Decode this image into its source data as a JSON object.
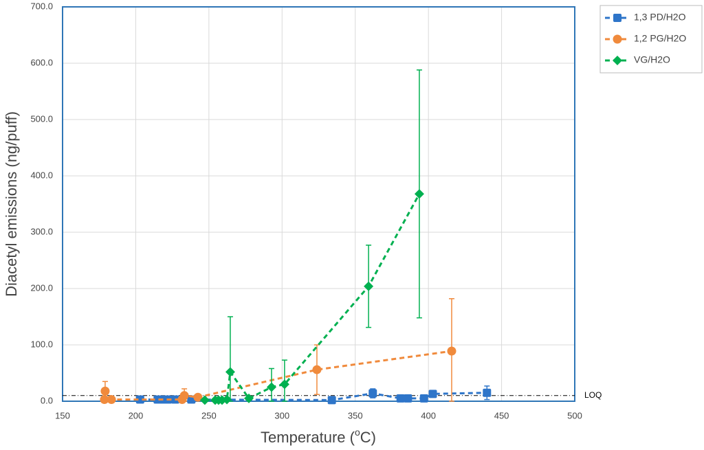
{
  "chart_data": {
    "type": "scatter",
    "xlabel": [
      "Temperature (",
      "o",
      "C)"
    ],
    "ylabel": "Diacetyl emissions (ng/puff)",
    "xlim": [
      150,
      500
    ],
    "xticks": [
      150,
      200,
      250,
      300,
      350,
      400,
      450,
      500
    ],
    "ylim": [
      0,
      700
    ],
    "yticks": [
      {
        "value": 0,
        "label": "0.0"
      },
      {
        "value": 100,
        "label": "100.0"
      },
      {
        "value": 200,
        "label": "200.0"
      },
      {
        "value": 300,
        "label": "300.0"
      },
      {
        "value": 400,
        "label": "400.0"
      },
      {
        "value": 500,
        "label": "500.0"
      },
      {
        "value": 600,
        "label": "600.0"
      },
      {
        "value": 700,
        "label": "700.0"
      }
    ],
    "grid": true,
    "legend": "right",
    "loq": {
      "label": "LOQ",
      "value": 10
    },
    "series": [
      {
        "name": "1,3 PD/H2O",
        "color": "#2e75c9",
        "marker": "square",
        "x": [
          203,
          215,
          218,
          222,
          227,
          238,
          334,
          362,
          381,
          386,
          397,
          403,
          440
        ],
        "values": [
          3,
          3,
          3,
          3,
          3,
          3,
          2,
          14,
          5,
          5,
          5,
          13,
          15
        ],
        "errors": [
          null,
          null,
          null,
          null,
          null,
          null,
          null,
          8,
          null,
          null,
          null,
          null,
          12
        ]
      },
      {
        "name": "1,2 PG/H2O",
        "color": "#f08a3c",
        "marker": "circle",
        "x": [
          178.6,
          179.1,
          183.4,
          231.7,
          233.2,
          242.5,
          323.8,
          415.9
        ],
        "values": [
          3,
          18,
          3,
          3,
          10,
          7,
          56,
          89
        ],
        "errors": [
          null,
          17,
          null,
          null,
          12,
          null,
          44,
          93
        ]
      },
      {
        "name": "VG/H2O",
        "color": "#00b050",
        "marker": "diamond",
        "x": [
          247.2,
          254.3,
          256.6,
          259,
          262.3,
          264.6,
          277.3,
          292.8,
          301.7,
          359.1,
          393.8
        ],
        "values": [
          2,
          2,
          2,
          2,
          3,
          52,
          5,
          25,
          30,
          204,
          368
        ],
        "errors": [
          null,
          null,
          null,
          null,
          null,
          98,
          null,
          33,
          43,
          73,
          220
        ]
      }
    ]
  }
}
